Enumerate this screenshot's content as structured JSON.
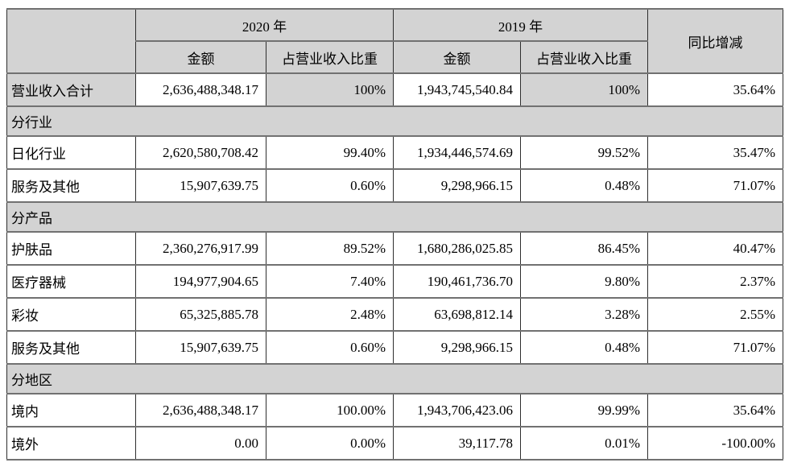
{
  "colors": {
    "header_bg": "#d3d3d3",
    "section_bg": "#d3d3d3",
    "row_bg": "#ffffff",
    "h_border": "#717171",
    "v_border": "#2e2e2e",
    "text": "#000000"
  },
  "table": {
    "headers": {
      "year2020": "2020 年",
      "year2019": "2019 年",
      "change": "同比增减",
      "amount": "金额",
      "ratio": "占营业收入比重"
    },
    "rows": [
      {
        "type": "data",
        "shaded": true,
        "label": "营业收入合计",
        "a2020": "2,636,488,348.17",
        "r2020": "100%",
        "a2019": "1,943,745,540.84",
        "r2019": "100%",
        "chg": "35.64%"
      },
      {
        "type": "section",
        "label": "分行业"
      },
      {
        "type": "data",
        "label": "日化行业",
        "a2020": "2,620,580,708.42",
        "r2020": "99.40%",
        "a2019": "1,934,446,574.69",
        "r2019": "99.52%",
        "chg": "35.47%"
      },
      {
        "type": "data",
        "label": "服务及其他",
        "a2020": "15,907,639.75",
        "r2020": "0.60%",
        "a2019": "9,298,966.15",
        "r2019": "0.48%",
        "chg": "71.07%"
      },
      {
        "type": "section",
        "label": "分产品"
      },
      {
        "type": "data",
        "label": "护肤品",
        "a2020": "2,360,276,917.99",
        "r2020": "89.52%",
        "a2019": "1,680,286,025.85",
        "r2019": "86.45%",
        "chg": "40.47%"
      },
      {
        "type": "data",
        "label": "医疗器械",
        "a2020": "194,977,904.65",
        "r2020": "7.40%",
        "a2019": "190,461,736.70",
        "r2019": "9.80%",
        "chg": "2.37%"
      },
      {
        "type": "data",
        "label": "彩妆",
        "a2020": "65,325,885.78",
        "r2020": "2.48%",
        "a2019": "63,698,812.14",
        "r2019": "3.28%",
        "chg": "2.55%"
      },
      {
        "type": "data",
        "label": "服务及其他",
        "a2020": "15,907,639.75",
        "r2020": "0.60%",
        "a2019": "9,298,966.15",
        "r2019": "0.48%",
        "chg": "71.07%"
      },
      {
        "type": "section",
        "label": "分地区"
      },
      {
        "type": "data",
        "label": "境内",
        "a2020": "2,636,488,348.17",
        "r2020": "100.00%",
        "a2019": "1,943,706,423.06",
        "r2019": "99.99%",
        "chg": "35.64%"
      },
      {
        "type": "data",
        "label": "境外",
        "a2020": "0.00",
        "r2020": "0.00%",
        "a2019": "39,117.78",
        "r2019": "0.01%",
        "chg": "-100.00%"
      }
    ]
  }
}
